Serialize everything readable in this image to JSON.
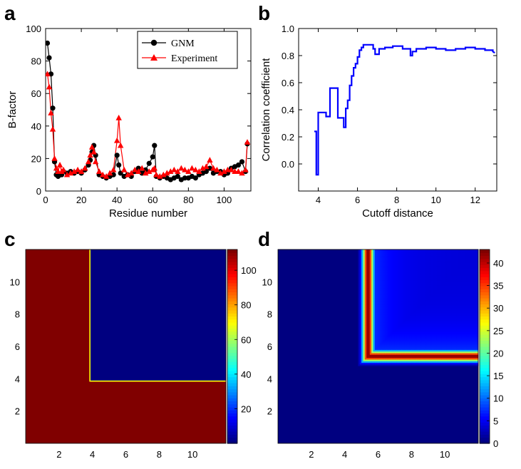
{
  "chart_data": [
    {
      "panel": "a",
      "type": "line",
      "xlabel": "Residue number",
      "ylabel": "B-factor",
      "xlim": [
        0,
        115
      ],
      "ylim": [
        0,
        100
      ],
      "xticks": [
        0,
        20,
        40,
        60,
        80,
        100
      ],
      "yticks": [
        0,
        20,
        40,
        60,
        80,
        100
      ],
      "legend_position": "top-right",
      "series": [
        {
          "name": "GNM",
          "color": "#000000",
          "marker": "circle",
          "x": [
            1,
            2,
            3,
            4,
            5,
            6,
            7,
            8,
            9,
            10,
            12,
            14,
            16,
            18,
            20,
            22,
            24,
            25,
            26,
            27,
            28,
            30,
            32,
            34,
            36,
            38,
            40,
            41,
            42,
            44,
            46,
            48,
            50,
            52,
            54,
            56,
            58,
            60,
            61,
            62,
            64,
            66,
            68,
            70,
            72,
            74,
            76,
            78,
            80,
            82,
            84,
            86,
            88,
            90,
            92,
            94,
            96,
            98,
            100,
            102,
            104,
            106,
            108,
            110,
            112,
            113
          ],
          "y": [
            91,
            82,
            72,
            51,
            18,
            10,
            9,
            10,
            10,
            12,
            11,
            12,
            11,
            12,
            11,
            13,
            16,
            19,
            24,
            28,
            22,
            10,
            9,
            8,
            9,
            10,
            22,
            16,
            11,
            9,
            10,
            9,
            12,
            14,
            11,
            13,
            17,
            21,
            28,
            9,
            8,
            9,
            8,
            7,
            8,
            9,
            7,
            8,
            8,
            9,
            8,
            10,
            11,
            12,
            14,
            11,
            12,
            12,
            10,
            11,
            14,
            15,
            16,
            18,
            12,
            29
          ]
        },
        {
          "name": "Experiment",
          "color": "#ff0000",
          "marker": "triangle",
          "x": [
            1,
            2,
            3,
            4,
            5,
            6,
            7,
            8,
            9,
            10,
            12,
            14,
            16,
            18,
            20,
            22,
            24,
            25,
            26,
            27,
            28,
            30,
            32,
            34,
            36,
            38,
            40,
            41,
            42,
            44,
            46,
            48,
            50,
            52,
            54,
            56,
            58,
            60,
            61,
            62,
            64,
            66,
            68,
            70,
            72,
            74,
            76,
            78,
            80,
            82,
            84,
            86,
            88,
            90,
            92,
            94,
            96,
            98,
            100,
            102,
            104,
            106,
            108,
            110,
            112,
            113
          ],
          "y": [
            72,
            64,
            48,
            38,
            20,
            14,
            12,
            16,
            12,
            13,
            10,
            11,
            12,
            13,
            12,
            14,
            18,
            22,
            27,
            24,
            18,
            12,
            10,
            9,
            11,
            13,
            31,
            45,
            28,
            13,
            10,
            11,
            13,
            12,
            14,
            11,
            12,
            13,
            14,
            10,
            9,
            10,
            11,
            12,
            13,
            12,
            14,
            13,
            12,
            14,
            13,
            12,
            14,
            15,
            19,
            14,
            13,
            11,
            12,
            13,
            13,
            12,
            12,
            11,
            13,
            30
          ]
        }
      ]
    },
    {
      "panel": "b",
      "type": "line",
      "xlabel": "Cutoff distance",
      "ylabel": "Correlation coefficient",
      "xlim": [
        3,
        13.1
      ],
      "ylim": [
        -0.2,
        1.0
      ],
      "xticks": [
        4,
        6,
        8,
        10,
        12
      ],
      "yticks": [
        0.0,
        0.2,
        0.4,
        0.6,
        0.8,
        1.0
      ],
      "series": [
        {
          "color": "#0000ff",
          "x": [
            3.8,
            3.9,
            3.9,
            4.0,
            4.0,
            4.4,
            4.4,
            4.6,
            4.6,
            5.0,
            5.0,
            5.3,
            5.3,
            5.4,
            5.4,
            5.5,
            5.5,
            5.6,
            5.6,
            5.7,
            5.7,
            5.8,
            5.8,
            5.9,
            5.9,
            6.0,
            6.0,
            6.1,
            6.1,
            6.2,
            6.2,
            6.3,
            6.3,
            6.8,
            6.8,
            6.9,
            6.9,
            7.1,
            7.1,
            7.4,
            7.4,
            7.8,
            7.8,
            8.3,
            8.3,
            8.7,
            8.7,
            8.8,
            8.8,
            9.0,
            9.0,
            9.5,
            9.5,
            10.0,
            10.0,
            10.5,
            10.5,
            11.0,
            11.0,
            11.5,
            11.5,
            12.0,
            12.0,
            12.5,
            12.5,
            12.9,
            12.9,
            13.0
          ],
          "y": [
            0.24,
            0.24,
            -0.08,
            -0.08,
            0.38,
            0.38,
            0.35,
            0.35,
            0.56,
            0.56,
            0.34,
            0.34,
            0.27,
            0.27,
            0.41,
            0.41,
            0.47,
            0.47,
            0.58,
            0.58,
            0.65,
            0.65,
            0.71,
            0.71,
            0.74,
            0.74,
            0.79,
            0.79,
            0.84,
            0.84,
            0.86,
            0.86,
            0.88,
            0.88,
            0.85,
            0.85,
            0.81,
            0.81,
            0.85,
            0.85,
            0.86,
            0.86,
            0.87,
            0.87,
            0.85,
            0.85,
            0.8,
            0.8,
            0.83,
            0.83,
            0.85,
            0.85,
            0.86,
            0.86,
            0.85,
            0.85,
            0.84,
            0.84,
            0.85,
            0.85,
            0.86,
            0.86,
            0.85,
            0.85,
            0.84,
            0.84,
            0.83,
            0.82
          ]
        }
      ]
    },
    {
      "panel": "c",
      "type": "heatmap",
      "extent": [
        0,
        12,
        0,
        12
      ],
      "xticks": [
        2,
        4,
        6,
        8,
        10
      ],
      "yticks": [
        2,
        4,
        6,
        8,
        10
      ],
      "colorbar": {
        "min": 0,
        "max": 112,
        "ticks": [
          20,
          40,
          60,
          80,
          100
        ]
      },
      "regions": [
        {
          "x": [
            0,
            12
          ],
          "y": [
            0,
            12
          ],
          "value": 112
        },
        {
          "x": [
            3.85,
            12
          ],
          "y": [
            3.85,
            12
          ],
          "value": 0
        }
      ]
    },
    {
      "panel": "d",
      "type": "heatmap",
      "extent": [
        0,
        12,
        0,
        12
      ],
      "xticks": [
        2,
        4,
        6,
        8,
        10
      ],
      "yticks": [
        2,
        4,
        6,
        8,
        10
      ],
      "colorbar": {
        "min": 0,
        "max": 43,
        "ticks": [
          0,
          5,
          10,
          15,
          20,
          25,
          30,
          35,
          40
        ]
      },
      "corner": [
        5.4,
        5.4
      ],
      "peak_value": 43,
      "background_value": 0,
      "decay_length": 0.3,
      "floor_inner": 5,
      "floor_value": 4,
      "floor_decay": 0.05
    }
  ],
  "labels": {
    "panel_a": "a",
    "panel_b": "b",
    "panel_c": "c",
    "panel_d": "d"
  }
}
